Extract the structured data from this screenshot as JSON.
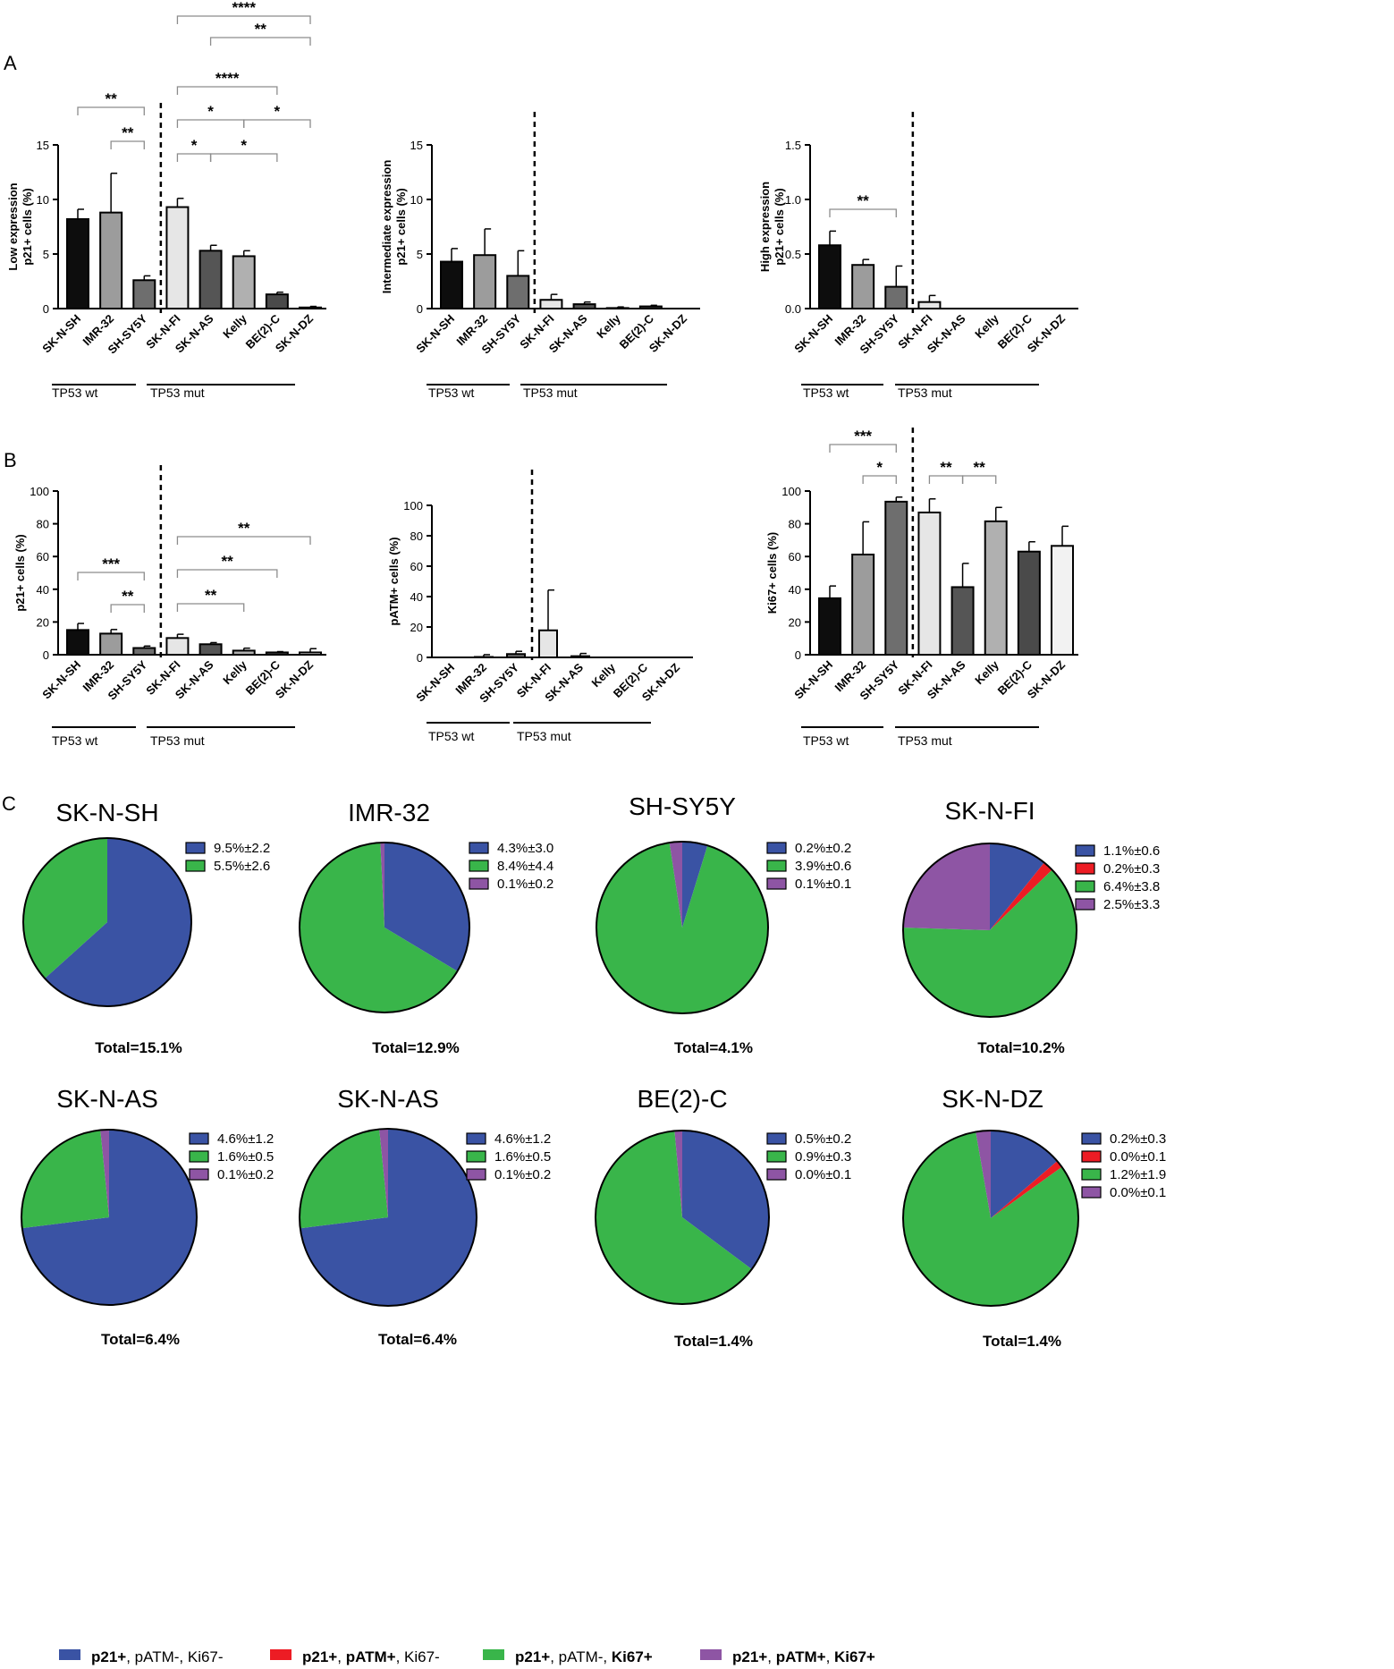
{
  "colors": {
    "blue": "#3a53a4",
    "red": "#ed1c24",
    "green": "#39b54a",
    "purple": "#8e55a4",
    "axis": "#000000",
    "bracket": "#8c8c8c",
    "bar_fills": [
      "#0d0d0d",
      "#9c9c9c",
      "#6e6e6e",
      "#e6e6e6",
      "#555555",
      "#b0b0b0",
      "#4a4a4a",
      "#f2f2f2"
    ]
  },
  "panels": {
    "a": "A",
    "b": "B",
    "c": "C"
  },
  "groups": {
    "wt": "TP53 wt",
    "mut": "TP53 mut"
  },
  "chart_data": [
    {
      "id": "a1",
      "type": "bar",
      "title": "",
      "ylabel": [
        "Low expression",
        "p21+ cells (%)"
      ],
      "categories": [
        "SK-N-SH",
        "IMR-32",
        "SH-SY5Y",
        "SK-N-FI",
        "SK-N-AS",
        "Kelly",
        "BE(2)-C",
        "SK-N-DZ"
      ],
      "values": [
        8.2,
        8.8,
        2.6,
        9.3,
        5.3,
        4.8,
        1.3,
        0.1
      ],
      "errors": [
        0.9,
        3.6,
        0.4,
        0.8,
        0.5,
        0.5,
        0.2,
        0.1
      ],
      "ylim": [
        0,
        15
      ],
      "yticks": [
        0,
        5,
        10,
        15
      ],
      "tick_labels": [
        "0",
        "5",
        "10",
        "15"
      ],
      "significance": [
        {
          "from": 0,
          "to": 2,
          "label": "**"
        },
        {
          "from": 1,
          "to": 2,
          "label": "**"
        },
        {
          "from": 3,
          "to": 7,
          "label": "****"
        },
        {
          "from": 4,
          "to": 7,
          "label": "**"
        },
        {
          "from": 3,
          "to": 6,
          "label": "****"
        },
        {
          "from": 3,
          "to": 5,
          "label": "*"
        },
        {
          "from": 5,
          "to": 7,
          "label": "*"
        },
        {
          "from": 3,
          "to": 4,
          "label": "*"
        },
        {
          "from": 4,
          "to": 6,
          "label": "*"
        }
      ]
    },
    {
      "id": "a2",
      "type": "bar",
      "title": "",
      "ylabel": [
        "Intermediate expression",
        "p21+ cells (%)"
      ],
      "categories": [
        "SK-N-SH",
        "IMR-32",
        "SH-SY5Y",
        "SK-N-FI",
        "SK-N-AS",
        "Kelly",
        "BE(2)-C",
        "SK-N-DZ"
      ],
      "values": [
        4.3,
        4.9,
        3.0,
        0.8,
        0.4,
        0.05,
        0.2,
        0.0
      ],
      "errors": [
        1.2,
        2.4,
        2.3,
        0.5,
        0.2,
        0.1,
        0.1,
        0.0
      ],
      "ylim": [
        0,
        15
      ],
      "yticks": [
        0,
        5,
        10,
        15
      ],
      "tick_labels": [
        "0",
        "5",
        "10",
        "15"
      ],
      "significance": []
    },
    {
      "id": "a3",
      "type": "bar",
      "title": "",
      "ylabel": [
        "High expression",
        "p21+ cells (%)"
      ],
      "categories": [
        "SK-N-SH",
        "IMR-32",
        "SH-SY5Y",
        "SK-N-FI",
        "SK-N-AS",
        "Kelly",
        "BE(2)-C",
        "SK-N-DZ"
      ],
      "values": [
        0.58,
        0.4,
        0.2,
        0.06,
        0.0,
        0.0,
        0.0,
        0.0
      ],
      "errors": [
        0.13,
        0.05,
        0.19,
        0.06,
        0.0,
        0.0,
        0.0,
        0.0
      ],
      "ylim": [
        0,
        1.5
      ],
      "yticks": [
        0,
        0.5,
        1.0,
        1.5
      ],
      "tick_labels": [
        "0.0",
        "0.5",
        "1.0",
        "1.5"
      ],
      "significance": [
        {
          "from": 0,
          "to": 2,
          "label": "**"
        }
      ]
    },
    {
      "id": "b1",
      "type": "bar",
      "title": "",
      "ylabel": [
        "p21+ cells (%)"
      ],
      "categories": [
        "SK-N-SH",
        "IMR-32",
        "SH-SY5Y",
        "SK-N-FI",
        "SK-N-AS",
        "Kelly",
        "BE(2)-C",
        "SK-N-DZ"
      ],
      "values": [
        15.1,
        12.9,
        4.1,
        10.2,
        6.4,
        2.5,
        1.4,
        1.4
      ],
      "errors": [
        4.0,
        2.5,
        1.2,
        2.3,
        1.0,
        1.5,
        0.5,
        2.3
      ],
      "ylim": [
        0,
        100
      ],
      "yticks": [
        0,
        20,
        40,
        60,
        80,
        100
      ],
      "tick_labels": [
        "0",
        "20",
        "40",
        "60",
        "80",
        "100"
      ],
      "significance": [
        {
          "from": 0,
          "to": 2,
          "label": "***"
        },
        {
          "from": 1,
          "to": 2,
          "label": "**"
        },
        {
          "from": 3,
          "to": 7,
          "label": "**"
        },
        {
          "from": 3,
          "to": 6,
          "label": "**"
        },
        {
          "from": 3,
          "to": 5,
          "label": "**"
        }
      ]
    },
    {
      "id": "b2",
      "type": "bar",
      "title": "",
      "ylabel": [
        "pATM+ cells (%)"
      ],
      "categories": [
        "SK-N-SH",
        "IMR-32",
        "SH-SY5Y",
        "SK-N-FI",
        "SK-N-AS",
        "Kelly",
        "BE(2)-C",
        "SK-N-DZ"
      ],
      "values": [
        0.0,
        0.3,
        2.2,
        17.8,
        0.8,
        0.0,
        0.0,
        0.0
      ],
      "errors": [
        0.0,
        1.5,
        1.8,
        26.5,
        1.8,
        0.0,
        0.0,
        0.0
      ],
      "ylim": [
        0,
        100
      ],
      "yticks": [
        0,
        20,
        40,
        60,
        80,
        100
      ],
      "tick_labels": [
        "0",
        "20",
        "40",
        "60",
        "80",
        "100"
      ],
      "significance": []
    },
    {
      "id": "b3",
      "type": "bar",
      "title": "",
      "ylabel": [
        "Ki67+ cells (%)"
      ],
      "categories": [
        "SK-N-SH",
        "IMR-32",
        "SH-SY5Y",
        "SK-N-FI",
        "SK-N-AS",
        "Kelly",
        "BE(2)-C",
        "SK-N-DZ"
      ],
      "values": [
        34.5,
        61.2,
        93.5,
        86.9,
        41.3,
        81.5,
        63.0,
        66.5
      ],
      "errors": [
        7.5,
        20.0,
        2.8,
        8.3,
        14.5,
        8.5,
        6.0,
        12.0
      ],
      "ylim": [
        0,
        100
      ],
      "yticks": [
        0,
        20,
        40,
        60,
        80,
        100
      ],
      "tick_labels": [
        "0",
        "20",
        "40",
        "60",
        "80",
        "100"
      ],
      "significance": [
        {
          "from": 0,
          "to": 2,
          "label": "***"
        },
        {
          "from": 1,
          "to": 2,
          "label": "*"
        },
        {
          "from": 3,
          "to": 4,
          "label": "**"
        },
        {
          "from": 4,
          "to": 5,
          "label": "**"
        }
      ]
    },
    {
      "id": "c1",
      "type": "pie",
      "title": "SK-N-SH",
      "total": "Total=15.1%",
      "slices": [
        {
          "color": "blue",
          "value": 9.5,
          "label": "9.5%±2.2"
        },
        {
          "color": "green",
          "value": 5.5,
          "label": "5.5%±2.6"
        }
      ]
    },
    {
      "id": "c2",
      "type": "pie",
      "title": "IMR-32",
      "total": "Total=12.9%",
      "slices": [
        {
          "color": "blue",
          "value": 4.3,
          "label": "4.3%±3.0"
        },
        {
          "color": "green",
          "value": 8.4,
          "label": "8.4%±4.4"
        },
        {
          "color": "purple",
          "value": 0.1,
          "label": "0.1%±0.2"
        }
      ]
    },
    {
      "id": "c3",
      "type": "pie",
      "title": "SH-SY5Y",
      "total": "Total=4.1%",
      "slices": [
        {
          "color": "blue",
          "value": 0.2,
          "label": "0.2%±0.2"
        },
        {
          "color": "green",
          "value": 3.9,
          "label": "3.9%±0.6"
        },
        {
          "color": "purple",
          "value": 0.1,
          "label": "0.1%±0.1"
        }
      ]
    },
    {
      "id": "c4",
      "type": "pie",
      "title": "SK-N-FI",
      "total": "Total=10.2%",
      "slices": [
        {
          "color": "blue",
          "value": 1.1,
          "label": "1.1%±0.6"
        },
        {
          "color": "red",
          "value": 0.2,
          "label": "0.2%±0.3"
        },
        {
          "color": "green",
          "value": 6.4,
          "label": "6.4%±3.8"
        },
        {
          "color": "purple",
          "value": 2.5,
          "label": "2.5%±3.3"
        }
      ]
    },
    {
      "id": "c5",
      "type": "pie",
      "title": "SK-N-AS",
      "total": "Total=6.4%",
      "slices": [
        {
          "color": "blue",
          "value": 4.6,
          "label": "4.6%±1.2"
        },
        {
          "color": "green",
          "value": 1.6,
          "label": "1.6%±0.5"
        },
        {
          "color": "purple",
          "value": 0.1,
          "label": "0.1%±0.2"
        }
      ]
    },
    {
      "id": "c6",
      "type": "pie",
      "title": "SK-N-AS",
      "total": "Total=6.4%",
      "slices": [
        {
          "color": "blue",
          "value": 4.6,
          "label": "4.6%±1.2"
        },
        {
          "color": "green",
          "value": 1.6,
          "label": "1.6%±0.5"
        },
        {
          "color": "purple",
          "value": 0.1,
          "label": "0.1%±0.2"
        }
      ]
    },
    {
      "id": "c7",
      "type": "pie",
      "title": "BE(2)-C",
      "total": "Total=1.4%",
      "slices": [
        {
          "color": "blue",
          "value": 0.5,
          "label": "0.5%±0.2"
        },
        {
          "color": "green",
          "value": 0.9,
          "label": "0.9%±0.3"
        },
        {
          "color": "purple",
          "value": 0.02,
          "label": "0.0%±0.1"
        }
      ]
    },
    {
      "id": "c8",
      "type": "pie",
      "title": "SK-N-DZ",
      "total": "Total=1.4%",
      "slices": [
        {
          "color": "blue",
          "value": 0.2,
          "label": "0.2%±0.3"
        },
        {
          "color": "red",
          "value": 0.02,
          "label": "0.0%±0.1"
        },
        {
          "color": "green",
          "value": 1.2,
          "label": "1.2%±1.9"
        },
        {
          "color": "purple",
          "value": 0.04,
          "label": "0.0%±0.1"
        }
      ]
    }
  ],
  "legend": [
    {
      "color": "blue",
      "parts": [
        {
          "t": "p21+",
          "b": true
        },
        {
          "t": ", pATM-, Ki67-",
          "b": false
        }
      ]
    },
    {
      "color": "red",
      "parts": [
        {
          "t": "p21+",
          "b": true
        },
        {
          "t": ", ",
          "b": false
        },
        {
          "t": "pATM+",
          "b": true
        },
        {
          "t": ", Ki67-",
          "b": false
        }
      ]
    },
    {
      "color": "green",
      "parts": [
        {
          "t": "p21+",
          "b": true
        },
        {
          "t": ", pATM-, ",
          "b": false
        },
        {
          "t": "Ki67+",
          "b": true
        }
      ]
    },
    {
      "color": "purple",
      "parts": [
        {
          "t": "p21+",
          "b": true
        },
        {
          "t": ", ",
          "b": false
        },
        {
          "t": "pATM+",
          "b": true
        },
        {
          "t": ", ",
          "b": false
        },
        {
          "t": "Ki67+",
          "b": true
        }
      ]
    }
  ]
}
